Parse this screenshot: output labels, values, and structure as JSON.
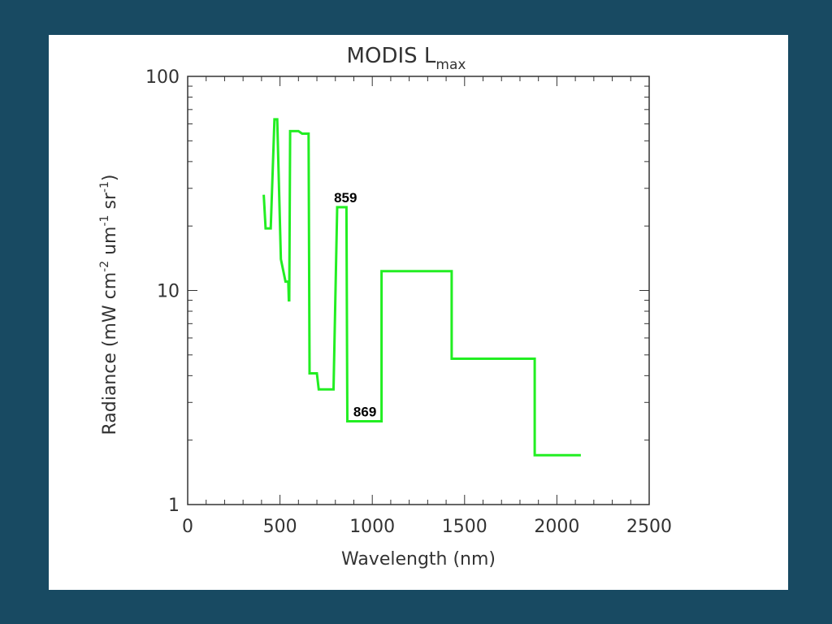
{
  "colors": {
    "background": "#184a62",
    "panel": "#ffffff",
    "line": "#22ee22",
    "axis": "#333333"
  },
  "chart_data": {
    "type": "line",
    "title": "MODIS L",
    "title_subscript": "max",
    "xlabel": "Wavelength (nm)",
    "ylabel": "Radiance (mW cm",
    "ylabel_parts": [
      "Radiance (mW cm",
      "-2",
      " um",
      "-1",
      " sr",
      "-1",
      ")"
    ],
    "x_scale": "linear",
    "y_scale": "log",
    "xlim": [
      0,
      2500
    ],
    "ylim": [
      1,
      100
    ],
    "x_ticks": [
      0,
      500,
      1000,
      1500,
      2000,
      2500
    ],
    "x_tick_labels": [
      "0",
      "500",
      "1000",
      "1500",
      "2000",
      "2500"
    ],
    "y_ticks": [
      1,
      10,
      100
    ],
    "y_tick_labels": [
      "1",
      "10",
      "100"
    ],
    "grid": false,
    "series": [
      {
        "x": [
          412,
          412,
          422,
          422,
          450,
          450,
          470,
          470,
          485,
          485,
          505,
          505,
          530,
          530,
          545,
          545,
          548,
          548,
          550,
          550,
          555,
          555,
          600,
          600,
          620,
          620,
          655,
          655,
          660,
          660,
          700,
          700,
          710,
          710,
          790,
          790,
          810,
          810,
          860,
          860,
          865,
          865,
          1050,
          1050,
          1430,
          1430,
          1880,
          1880,
          2130
        ],
        "y": [
          28,
          28,
          19.5,
          19.5,
          19.5,
          19.5,
          63,
          63,
          63,
          63,
          14,
          14,
          11,
          11,
          11,
          11,
          9,
          9,
          9,
          9,
          55.5,
          55.5,
          55.5,
          55.5,
          54,
          54,
          54,
          54,
          4.1,
          4.1,
          4.1,
          4.1,
          3.45,
          3.45,
          3.45,
          3.45,
          24.5,
          24.5,
          24.5,
          24.5,
          2.45,
          2.45,
          2.45,
          12.3,
          12.3,
          4.8,
          4.8,
          1.7,
          1.7
        ]
      }
    ],
    "annotations": [
      {
        "text": "859",
        "x": 855,
        "y": 24.5
      },
      {
        "text": "869",
        "x": 960,
        "y": 2.45
      }
    ]
  }
}
